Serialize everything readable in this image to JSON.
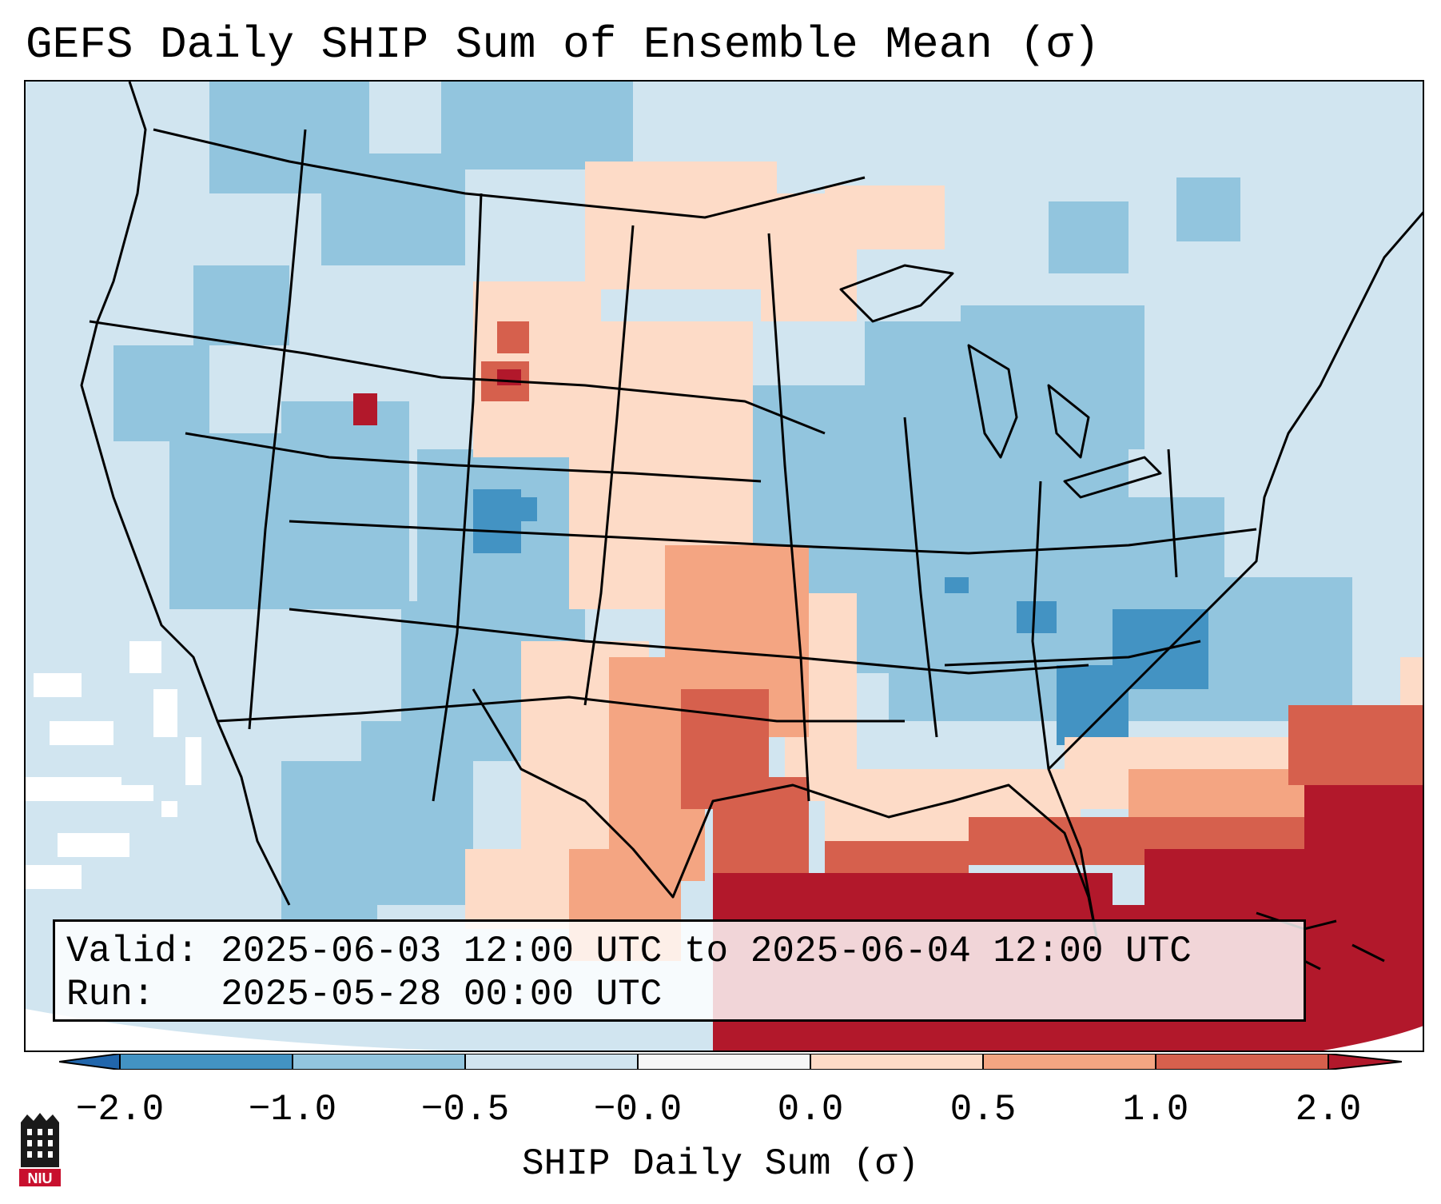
{
  "title": "GEFS Daily SHIP Sum of Ensemble Mean (σ)",
  "info": {
    "valid_label": "Valid:",
    "valid_value": "2025-06-03 12:00 UTC to 2025-06-04 12:00 UTC",
    "run_label": "Run:",
    "run_value": "2025-05-28 00:00 UTC"
  },
  "colorbar": {
    "title": "SHIP Daily Sum (σ)",
    "ticks": [
      "−2.0",
      "−1.0",
      "−0.5",
      "−0.0",
      "0.0",
      "0.5",
      "1.0",
      "2.0"
    ],
    "bins": [
      {
        "range": "< -2.0",
        "color": "#2166ac"
      },
      {
        "range": "-2.0 to -1.0",
        "color": "#4393c3"
      },
      {
        "range": "-1.0 to -0.5",
        "color": "#92c5de"
      },
      {
        "range": "-0.5 to -0.0",
        "color": "#d1e5f0"
      },
      {
        "range": "-0.0 to 0.0",
        "color": "#f7f7f7"
      },
      {
        "range": "0.0 to 0.5",
        "color": "#fddbc7"
      },
      {
        "range": "0.5 to 1.0",
        "color": "#f4a582"
      },
      {
        "range": "1.0 to 2.0",
        "color": "#d6604d"
      },
      {
        "range": "> 2.0",
        "color": "#b2182b"
      }
    ]
  },
  "logo": {
    "text": "NIU",
    "color": "#c8102e"
  }
}
